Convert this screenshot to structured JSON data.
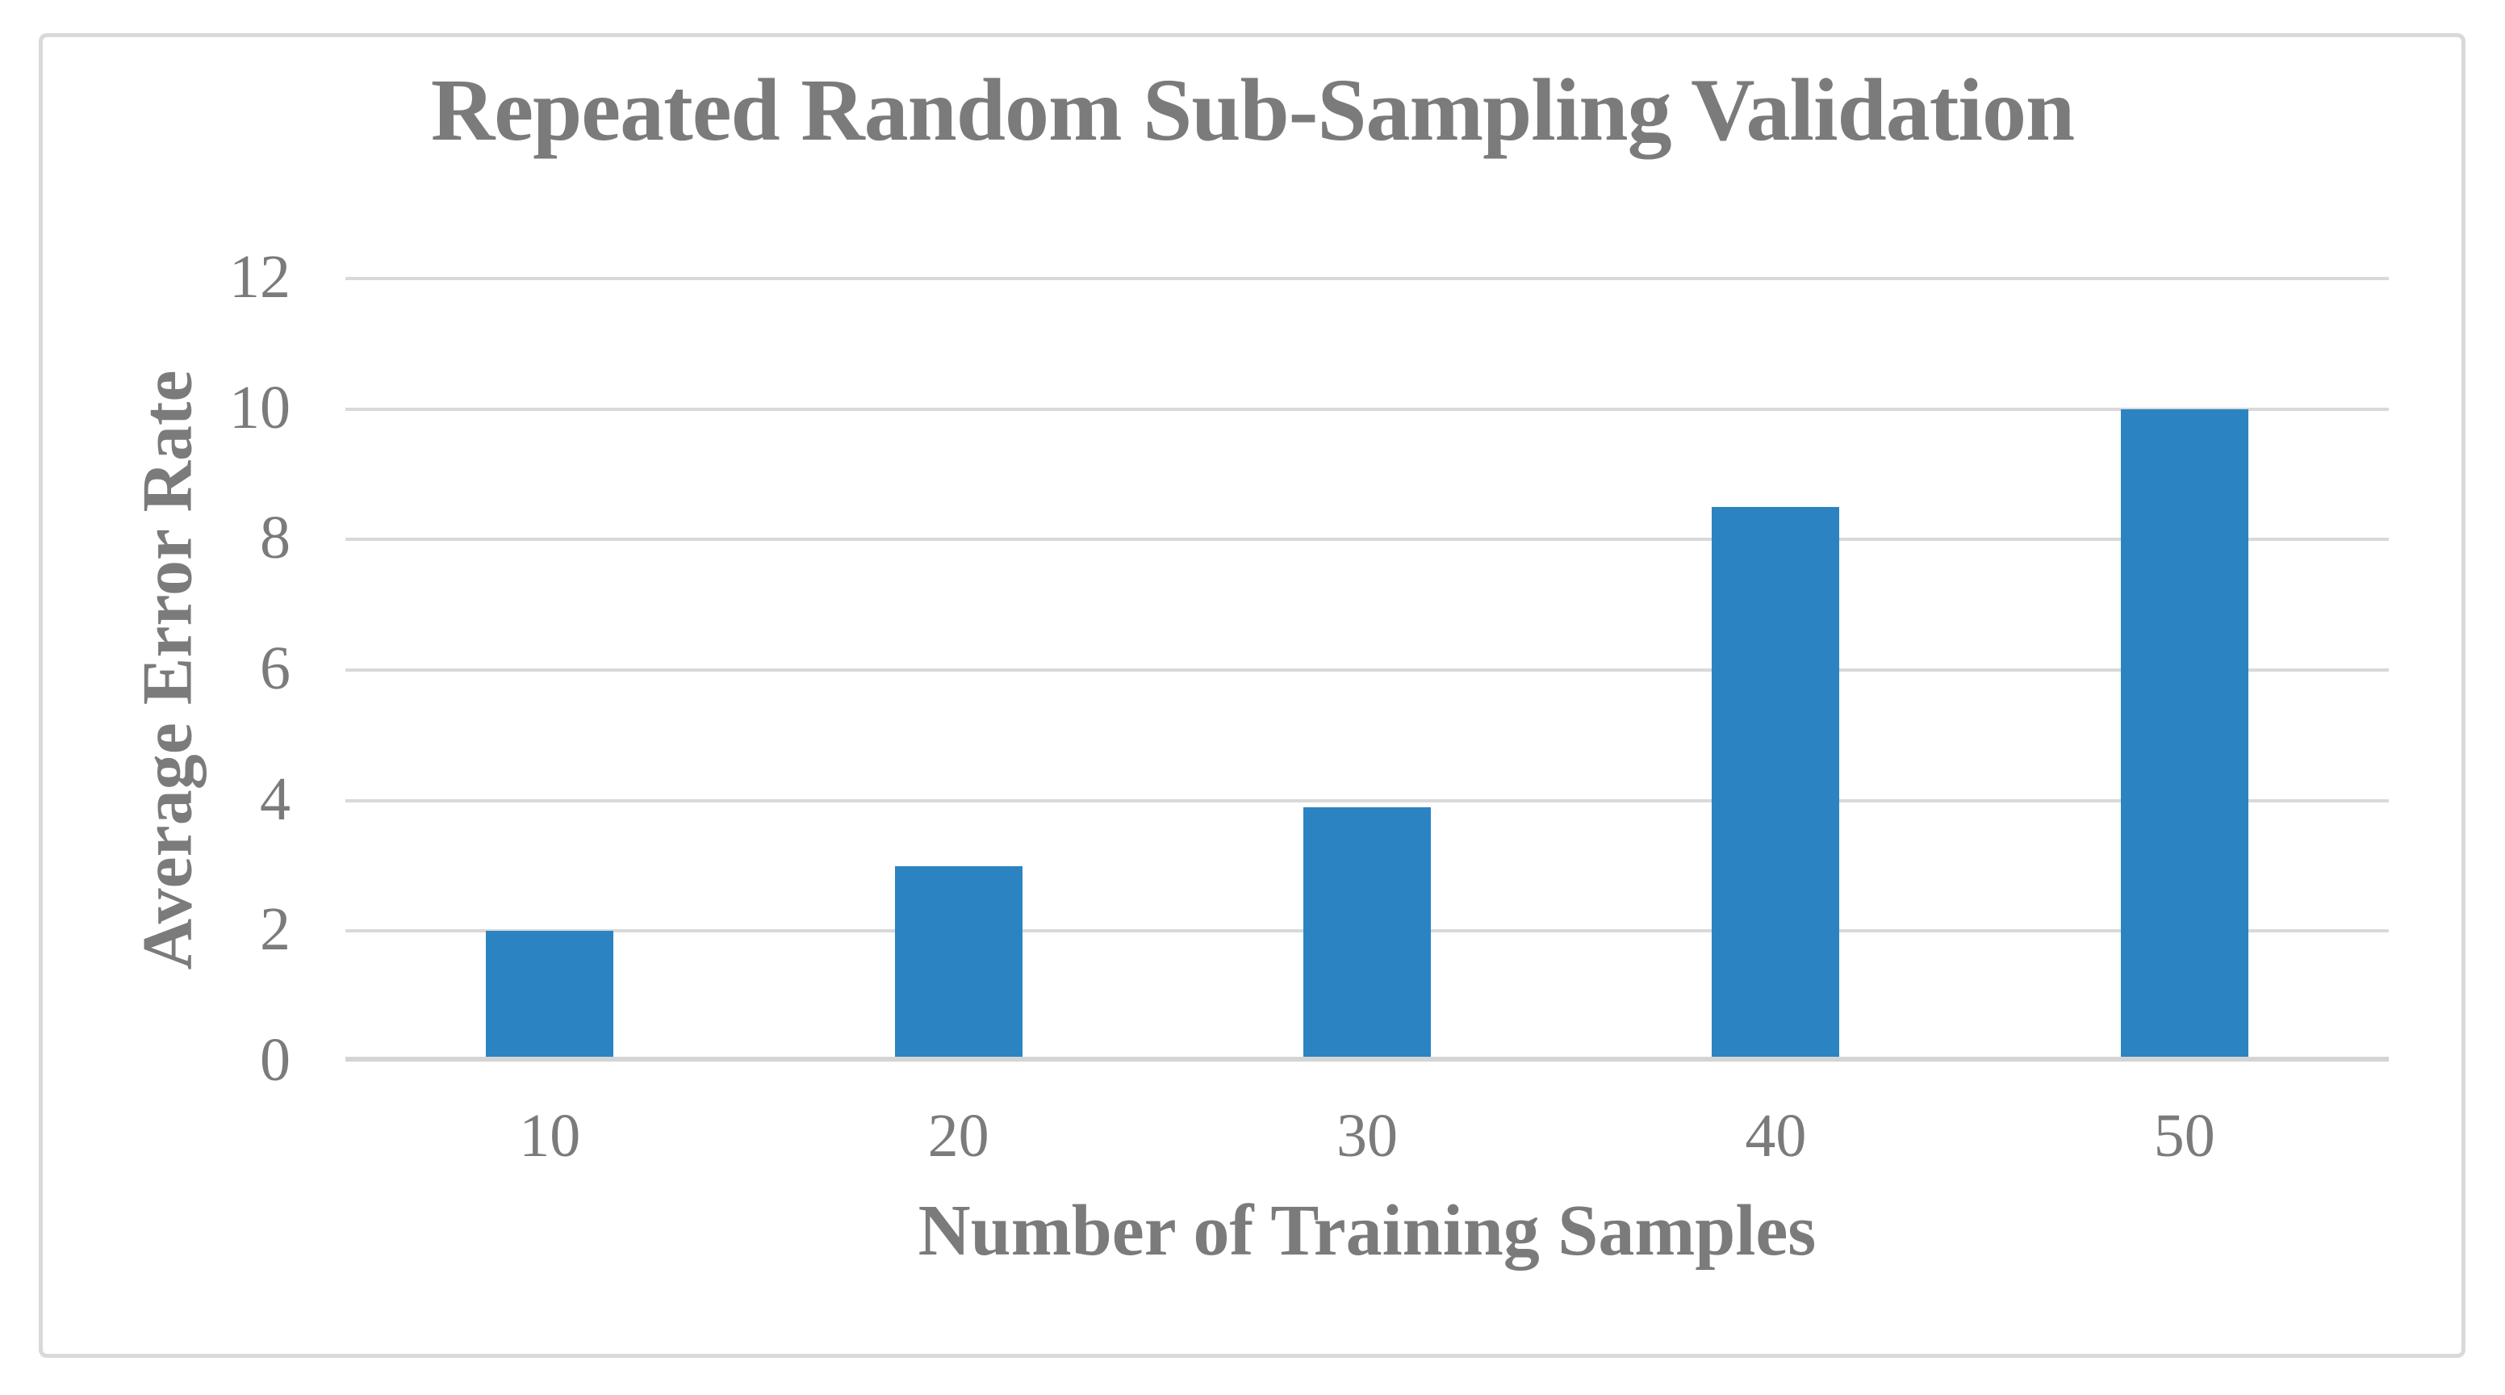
{
  "chart_data": {
    "type": "bar",
    "title": "Repeated Random Sub-Sampling Validation",
    "xlabel": "Number of Training Samples",
    "ylabel": "Average Error Rate",
    "categories": [
      "10",
      "20",
      "30",
      "40",
      "50"
    ],
    "values": [
      2,
      3,
      3.9,
      8.5,
      10
    ],
    "ylim": [
      0,
      12
    ],
    "yticks": [
      0,
      2,
      4,
      6,
      8,
      10,
      12
    ],
    "grid": "horizontal",
    "legend": "none",
    "series_name": "Average Error Rate"
  },
  "colors": {
    "bar_fill": "#2b84c1",
    "text_gray": "#7b7b7b",
    "gridline": "#d9d9d9",
    "axis_line": "#d4d4d4",
    "frame_border": "#d9d9d9",
    "background": "#ffffff"
  }
}
